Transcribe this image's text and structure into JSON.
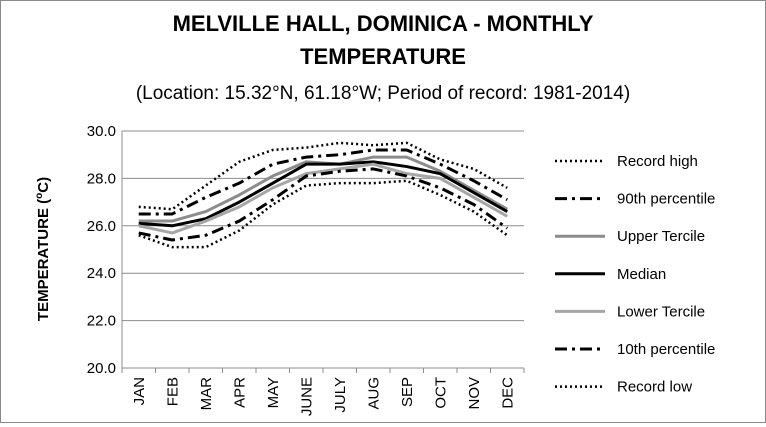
{
  "chart_data": {
    "type": "line",
    "title_line1": "MELVILLE HALL, DOMINICA - MONTHLY",
    "title_line2": "TEMPERATURE",
    "subtitle": "(Location: 15.32°N, 61.18°W; Period of record: 1981-2014)",
    "xlabel": "",
    "ylabel": "TEMPERATURE (",
    "ylabel_sup": "o",
    "ylabel_tail": "C)",
    "ylim": [
      20.0,
      30.0
    ],
    "yticks": [
      "20.0",
      "22.0",
      "24.0",
      "26.0",
      "28.0",
      "30.0"
    ],
    "categories": [
      "JAN",
      "FEB",
      "MAR",
      "APR",
      "MAY",
      "JUNE",
      "JULY",
      "AUG",
      "SEP",
      "OCT",
      "NOV",
      "DEC"
    ],
    "legend_position": "right",
    "grid": "horizontal",
    "series": [
      {
        "name": "Record high",
        "style": "dotted",
        "color": "#000000",
        "values": [
          26.8,
          26.7,
          27.7,
          28.7,
          29.2,
          29.3,
          29.5,
          29.4,
          29.5,
          28.8,
          28.4,
          27.6
        ]
      },
      {
        "name": "90th percentile",
        "style": "dashdot",
        "color": "#000000",
        "values": [
          26.5,
          26.5,
          27.2,
          27.8,
          28.6,
          28.9,
          29.0,
          29.2,
          29.2,
          28.6,
          27.9,
          27.1
        ]
      },
      {
        "name": "Upper Tercile",
        "style": "solid",
        "color": "#8c8c8c",
        "values": [
          26.2,
          26.2,
          26.6,
          27.3,
          28.1,
          28.7,
          28.6,
          28.9,
          28.9,
          28.3,
          27.5,
          26.7
        ]
      },
      {
        "name": "Median",
        "style": "solid",
        "color": "#000000",
        "values": [
          26.1,
          26.0,
          26.3,
          27.0,
          27.8,
          28.6,
          28.6,
          28.7,
          28.5,
          28.2,
          27.4,
          26.6
        ]
      },
      {
        "name": "Lower Tercile",
        "style": "solid",
        "color": "#a6a6a6",
        "values": [
          26.0,
          25.7,
          26.2,
          26.8,
          27.6,
          28.2,
          28.4,
          28.6,
          28.2,
          28.0,
          27.2,
          26.4
        ]
      },
      {
        "name": "10th percentile",
        "style": "dashdot",
        "color": "#000000",
        "values": [
          25.7,
          25.4,
          25.6,
          26.2,
          27.1,
          28.1,
          28.3,
          28.4,
          28.1,
          27.6,
          26.9,
          25.9
        ]
      },
      {
        "name": "Record low",
        "style": "dotted",
        "color": "#000000",
        "values": [
          25.6,
          25.1,
          25.1,
          25.8,
          26.9,
          27.7,
          27.8,
          27.8,
          27.9,
          27.3,
          26.6,
          25.6
        ]
      }
    ]
  }
}
